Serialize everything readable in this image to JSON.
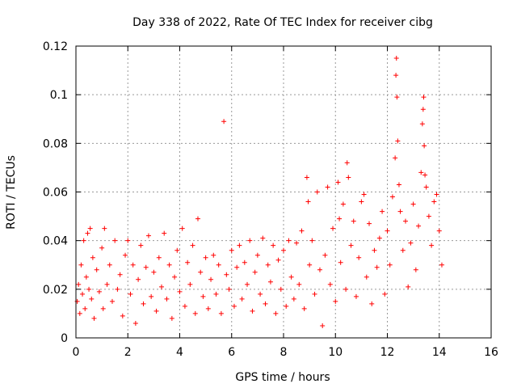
{
  "chart_data": {
    "type": "scatter",
    "title": "Day 338 of 2022, Rate Of TEC Index for receiver cibg",
    "xlabel": "GPS time / hours",
    "ylabel": "ROTI / TECUs",
    "xlim": [
      0,
      16
    ],
    "ylim": [
      0,
      0.12
    ],
    "x_ticks": [
      0,
      2,
      4,
      6,
      8,
      10,
      12,
      14,
      16
    ],
    "y_ticks": [
      0,
      0.02,
      0.04,
      0.06,
      0.08,
      0.1,
      0.12
    ],
    "x_tick_labels": [
      "0",
      "2",
      "4",
      "6",
      "8",
      "10",
      "12",
      "14",
      "16"
    ],
    "y_tick_labels": [
      "0",
      "0.02",
      "0.04",
      "0.06",
      "0.08",
      "0.1",
      "0.12"
    ],
    "grid": true,
    "marker": "plus",
    "color": "#ff0000",
    "series": [
      {
        "name": "ROTI",
        "points": [
          [
            0.05,
            0.015
          ],
          [
            0.1,
            0.022
          ],
          [
            0.15,
            0.01
          ],
          [
            0.2,
            0.03
          ],
          [
            0.25,
            0.018
          ],
          [
            0.3,
            0.04
          ],
          [
            0.35,
            0.012
          ],
          [
            0.4,
            0.025
          ],
          [
            0.45,
            0.043
          ],
          [
            0.5,
            0.02
          ],
          [
            0.55,
            0.045
          ],
          [
            0.6,
            0.016
          ],
          [
            0.65,
            0.033
          ],
          [
            0.7,
            0.008
          ],
          [
            0.8,
            0.028
          ],
          [
            0.9,
            0.019
          ],
          [
            1.0,
            0.037
          ],
          [
            1.05,
            0.012
          ],
          [
            1.1,
            0.045
          ],
          [
            1.2,
            0.022
          ],
          [
            1.3,
            0.03
          ],
          [
            1.4,
            0.015
          ],
          [
            1.5,
            0.04
          ],
          [
            1.6,
            0.02
          ],
          [
            1.7,
            0.026
          ],
          [
            1.8,
            0.009
          ],
          [
            1.9,
            0.034
          ],
          [
            2.0,
            0.04
          ],
          [
            2.1,
            0.018
          ],
          [
            2.2,
            0.03
          ],
          [
            2.3,
            0.006
          ],
          [
            2.4,
            0.024
          ],
          [
            2.5,
            0.038
          ],
          [
            2.6,
            0.014
          ],
          [
            2.7,
            0.029
          ],
          [
            2.8,
            0.042
          ],
          [
            2.9,
            0.017
          ],
          [
            3.0,
            0.027
          ],
          [
            3.1,
            0.011
          ],
          [
            3.2,
            0.033
          ],
          [
            3.3,
            0.021
          ],
          [
            3.4,
            0.043
          ],
          [
            3.5,
            0.016
          ],
          [
            3.6,
            0.03
          ],
          [
            3.7,
            0.008
          ],
          [
            3.8,
            0.025
          ],
          [
            3.9,
            0.036
          ],
          [
            4.0,
            0.019
          ],
          [
            4.1,
            0.045
          ],
          [
            4.2,
            0.013
          ],
          [
            4.3,
            0.031
          ],
          [
            4.4,
            0.022
          ],
          [
            4.5,
            0.038
          ],
          [
            4.6,
            0.01
          ],
          [
            4.7,
            0.049
          ],
          [
            4.8,
            0.027
          ],
          [
            4.9,
            0.017
          ],
          [
            5.0,
            0.033
          ],
          [
            5.1,
            0.012
          ],
          [
            5.2,
            0.024
          ],
          [
            5.3,
            0.034
          ],
          [
            5.4,
            0.018
          ],
          [
            5.5,
            0.03
          ],
          [
            5.6,
            0.01
          ],
          [
            5.7,
            0.089
          ],
          [
            5.8,
            0.026
          ],
          [
            5.9,
            0.02
          ],
          [
            6.0,
            0.036
          ],
          [
            6.1,
            0.013
          ],
          [
            6.2,
            0.029
          ],
          [
            6.3,
            0.038
          ],
          [
            6.4,
            0.016
          ],
          [
            6.5,
            0.031
          ],
          [
            6.6,
            0.022
          ],
          [
            6.7,
            0.04
          ],
          [
            6.8,
            0.011
          ],
          [
            6.9,
            0.027
          ],
          [
            7.0,
            0.034
          ],
          [
            7.1,
            0.018
          ],
          [
            7.2,
            0.041
          ],
          [
            7.3,
            0.014
          ],
          [
            7.4,
            0.03
          ],
          [
            7.5,
            0.023
          ],
          [
            7.6,
            0.038
          ],
          [
            7.7,
            0.01
          ],
          [
            7.8,
            0.032
          ],
          [
            7.9,
            0.02
          ],
          [
            8.0,
            0.036
          ],
          [
            8.1,
            0.013
          ],
          [
            8.2,
            0.04
          ],
          [
            8.3,
            0.025
          ],
          [
            8.4,
            0.016
          ],
          [
            8.5,
            0.039
          ],
          [
            8.6,
            0.022
          ],
          [
            8.7,
            0.044
          ],
          [
            8.8,
            0.012
          ],
          [
            8.9,
            0.066
          ],
          [
            8.95,
            0.056
          ],
          [
            9.0,
            0.03
          ],
          [
            9.1,
            0.04
          ],
          [
            9.2,
            0.018
          ],
          [
            9.3,
            0.06
          ],
          [
            9.4,
            0.028
          ],
          [
            9.5,
            0.005
          ],
          [
            9.6,
            0.034
          ],
          [
            9.7,
            0.062
          ],
          [
            9.8,
            0.022
          ],
          [
            9.9,
            0.045
          ],
          [
            10.0,
            0.015
          ],
          [
            10.1,
            0.064
          ],
          [
            10.15,
            0.049
          ],
          [
            10.2,
            0.031
          ],
          [
            10.3,
            0.055
          ],
          [
            10.4,
            0.02
          ],
          [
            10.45,
            0.072
          ],
          [
            10.5,
            0.066
          ],
          [
            10.6,
            0.038
          ],
          [
            10.7,
            0.048
          ],
          [
            10.8,
            0.017
          ],
          [
            10.9,
            0.033
          ],
          [
            11.0,
            0.056
          ],
          [
            11.1,
            0.059
          ],
          [
            11.2,
            0.025
          ],
          [
            11.3,
            0.047
          ],
          [
            11.4,
            0.014
          ],
          [
            11.5,
            0.036
          ],
          [
            11.6,
            0.029
          ],
          [
            11.7,
            0.041
          ],
          [
            11.8,
            0.052
          ],
          [
            11.9,
            0.018
          ],
          [
            12.0,
            0.044
          ],
          [
            12.1,
            0.03
          ],
          [
            12.2,
            0.058
          ],
          [
            12.3,
            0.074
          ],
          [
            12.33,
            0.108
          ],
          [
            12.35,
            0.115
          ],
          [
            12.37,
            0.099
          ],
          [
            12.4,
            0.081
          ],
          [
            12.45,
            0.063
          ],
          [
            12.5,
            0.052
          ],
          [
            12.6,
            0.036
          ],
          [
            12.7,
            0.048
          ],
          [
            12.8,
            0.021
          ],
          [
            12.9,
            0.039
          ],
          [
            13.0,
            0.055
          ],
          [
            13.1,
            0.028
          ],
          [
            13.2,
            0.046
          ],
          [
            13.3,
            0.068
          ],
          [
            13.35,
            0.088
          ],
          [
            13.38,
            0.094
          ],
          [
            13.4,
            0.099
          ],
          [
            13.42,
            0.079
          ],
          [
            13.45,
            0.067
          ],
          [
            13.5,
            0.062
          ],
          [
            13.6,
            0.05
          ],
          [
            13.7,
            0.038
          ],
          [
            13.8,
            0.056
          ],
          [
            13.9,
            0.059
          ],
          [
            14.0,
            0.044
          ],
          [
            14.1,
            0.03
          ]
        ]
      }
    ]
  }
}
